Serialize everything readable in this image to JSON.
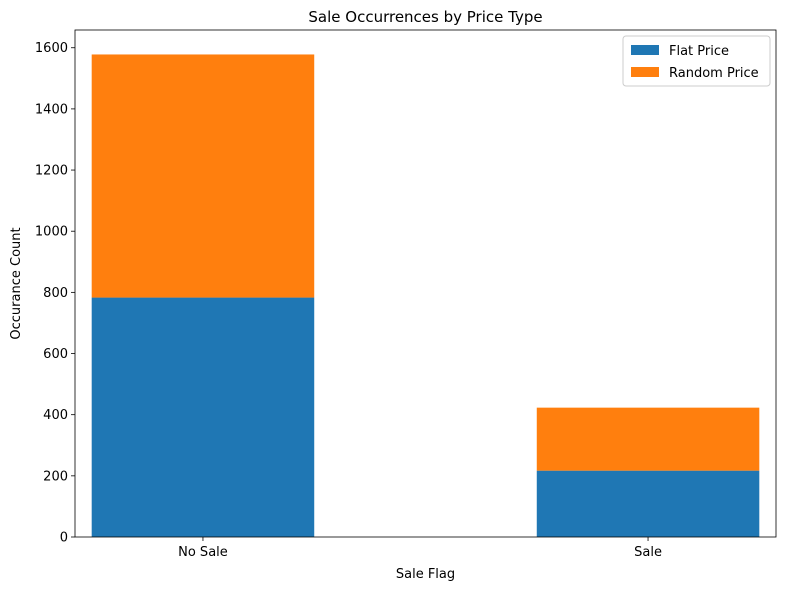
{
  "chart_data": {
    "type": "bar",
    "stacked": true,
    "title": "Sale Occurrences by Price Type",
    "xlabel": "Sale Flag",
    "ylabel": "Occurance Count",
    "categories": [
      "No Sale",
      "Sale"
    ],
    "series": [
      {
        "name": "Flat Price",
        "values": [
          783,
          217
        ],
        "color": "#1f77b4"
      },
      {
        "name": "Random Price",
        "values": [
          795,
          206
        ],
        "color": "#ff7f0e"
      }
    ],
    "ylim": [
      0,
      1658
    ],
    "yticks": [
      0,
      200,
      400,
      600,
      800,
      1000,
      1200,
      1400,
      1600
    ],
    "grid": false,
    "legend_position": "top-right"
  }
}
